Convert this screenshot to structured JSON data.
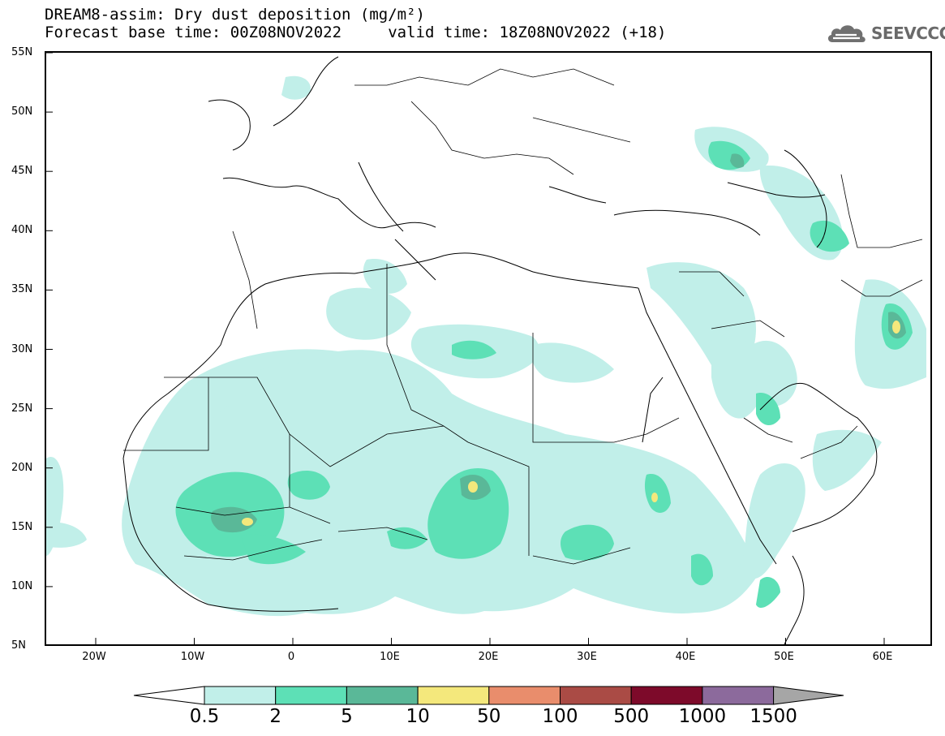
{
  "title": {
    "line1": "DREAM8-assim: Dry dust deposition (mg/m²)",
    "line2": "Forecast base time: 00Z08NOV2022     valid time: 18Z08NOV2022 (+18)"
  },
  "logo": {
    "icon": "cloud-icon",
    "text": "SEEVCCC"
  },
  "map": {
    "lat_labels": [
      "55N",
      "50N",
      "45N",
      "40N",
      "35N",
      "30N",
      "25N",
      "20N",
      "15N",
      "10N",
      "5N"
    ],
    "lon_labels": [
      "20W",
      "10W",
      "0",
      "10E",
      "20E",
      "30E",
      "40E",
      "50E",
      "60E"
    ]
  },
  "legend": {
    "levels": [
      "0.5",
      "2",
      "5",
      "10",
      "50",
      "100",
      "500",
      "1000",
      "1500"
    ],
    "colors": [
      "#c1efe9",
      "#5de0b6",
      "#5ab898",
      "#f4e87c",
      "#e98d6c",
      "#aa4b45",
      "#7d0a2a",
      "#8c6a9c"
    ],
    "under_color": "#ffffff",
    "over_color": "#a6a6a6"
  }
}
